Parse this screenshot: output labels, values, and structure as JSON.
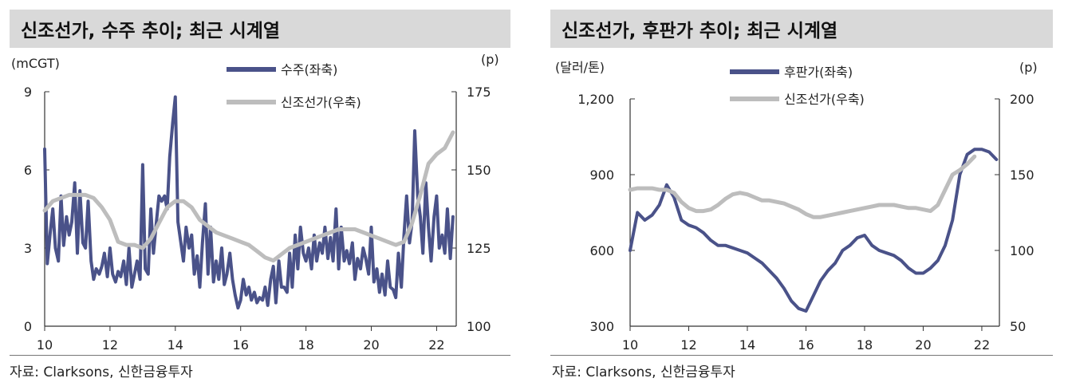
{
  "chart_data": [
    {
      "type": "line",
      "title": "신조선가, 수주 추이; 최근 시계열",
      "left_unit": "(mCGT)",
      "right_unit": "(p)",
      "source": "자료: Clarksons, 신한금융투자",
      "xlim": [
        10,
        22.6
      ],
      "x_ticks": [
        10,
        12,
        14,
        16,
        18,
        20,
        22
      ],
      "y_left": {
        "range": [
          0,
          9
        ],
        "ticks": [
          0,
          3,
          6,
          9
        ]
      },
      "y_right": {
        "range": [
          100,
          175
        ],
        "ticks": [
          100,
          125,
          150,
          175
        ]
      },
      "legend": [
        {
          "label": "수주(좌축)",
          "color": "#4a5289"
        },
        {
          "label": "신조선가(우축)",
          "color": "#bdbdbd"
        }
      ],
      "series": [
        {
          "name": "수주(좌축)",
          "axis": "left",
          "color": "#4a5289",
          "x": [
            10.0,
            10.08,
            10.17,
            10.25,
            10.33,
            10.42,
            10.5,
            10.58,
            10.67,
            10.75,
            10.83,
            10.92,
            11.0,
            11.08,
            11.17,
            11.25,
            11.33,
            11.42,
            11.5,
            11.58,
            11.67,
            11.75,
            11.83,
            11.92,
            12.0,
            12.08,
            12.17,
            12.25,
            12.33,
            12.42,
            12.5,
            12.58,
            12.67,
            12.75,
            12.83,
            12.92,
            13.0,
            13.08,
            13.17,
            13.25,
            13.33,
            13.42,
            13.5,
            13.58,
            13.67,
            13.75,
            13.83,
            13.92,
            14.0,
            14.08,
            14.17,
            14.25,
            14.33,
            14.42,
            14.5,
            14.58,
            14.67,
            14.75,
            14.83,
            14.92,
            15.0,
            15.08,
            15.17,
            15.25,
            15.33,
            15.42,
            15.5,
            15.58,
            15.67,
            15.75,
            15.83,
            15.92,
            16.0,
            16.08,
            16.17,
            16.25,
            16.33,
            16.42,
            16.5,
            16.58,
            16.67,
            16.75,
            16.83,
            16.92,
            17.0,
            17.08,
            17.17,
            17.25,
            17.33,
            17.42,
            17.5,
            17.58,
            17.67,
            17.75,
            17.83,
            17.92,
            18.0,
            18.08,
            18.17,
            18.25,
            18.33,
            18.42,
            18.5,
            18.58,
            18.67,
            18.75,
            18.83,
            18.92,
            19.0,
            19.08,
            19.17,
            19.25,
            19.33,
            19.42,
            19.5,
            19.58,
            19.67,
            19.75,
            19.83,
            19.92,
            20.0,
            20.08,
            20.17,
            20.25,
            20.33,
            20.42,
            20.5,
            20.58,
            20.67,
            20.75,
            20.83,
            20.92,
            21.0,
            21.08,
            21.17,
            21.25,
            21.33,
            21.42,
            21.5,
            21.58,
            21.67,
            21.75,
            21.83,
            21.92,
            22.0,
            22.08,
            22.17,
            22.25,
            22.33,
            22.42,
            22.5
          ],
          "values": [
            6.8,
            2.4,
            3.6,
            4.5,
            3.0,
            2.5,
            5.0,
            3.1,
            4.2,
            3.5,
            4.0,
            5.5,
            2.8,
            5.2,
            3.2,
            3.0,
            4.8,
            2.5,
            1.8,
            2.2,
            2.0,
            2.3,
            2.8,
            1.9,
            3.0,
            2.0,
            1.7,
            2.1,
            1.9,
            2.5,
            1.6,
            3.0,
            1.5,
            2.0,
            2.5,
            1.8,
            6.2,
            2.2,
            2.0,
            4.5,
            2.8,
            4.0,
            5.0,
            4.8,
            5.0,
            4.5,
            6.5,
            7.8,
            8.8,
            4.0,
            3.2,
            2.5,
            3.8,
            3.0,
            3.5,
            2.0,
            2.7,
            1.5,
            3.2,
            4.7,
            2.0,
            3.8,
            1.7,
            2.5,
            1.8,
            3.0,
            1.6,
            2.0,
            2.8,
            1.8,
            1.2,
            0.7,
            1.0,
            1.8,
            1.2,
            1.5,
            1.0,
            1.3,
            0.9,
            1.1,
            1.0,
            1.5,
            0.8,
            1.8,
            2.3,
            0.9,
            2.5,
            1.5,
            1.5,
            1.3,
            2.8,
            1.5,
            3.5,
            2.2,
            3.8,
            2.8,
            2.5,
            3.0,
            2.2,
            3.5,
            2.5,
            3.2,
            2.8,
            3.8,
            2.6,
            3.4,
            2.5,
            4.5,
            2.2,
            3.8,
            2.5,
            2.9,
            2.4,
            3.2,
            1.8,
            2.6,
            2.2,
            3.0,
            2.6,
            2.0,
            3.8,
            1.7,
            2.2,
            1.3,
            2.0,
            1.2,
            2.5,
            1.5,
            1.4,
            1.1,
            2.8,
            1.5,
            3.5,
            5.0,
            3.2,
            4.0,
            7.5,
            5.0,
            4.2,
            2.8,
            5.5,
            3.8,
            2.5,
            4.2,
            5.0,
            3.0,
            3.5,
            2.8,
            4.5,
            2.6,
            4.2
          ]
        },
        {
          "name": "신조선가(우축)",
          "axis": "right",
          "color": "#bdbdbd",
          "x": [
            10.0,
            10.25,
            10.5,
            10.75,
            11.0,
            11.25,
            11.5,
            11.75,
            12.0,
            12.25,
            12.5,
            12.75,
            13.0,
            13.25,
            13.5,
            13.75,
            14.0,
            14.25,
            14.5,
            14.75,
            15.0,
            15.25,
            15.5,
            15.75,
            16.0,
            16.25,
            16.5,
            16.75,
            17.0,
            17.25,
            17.5,
            17.75,
            18.0,
            18.25,
            18.5,
            18.75,
            19.0,
            19.25,
            19.5,
            19.75,
            20.0,
            20.25,
            20.5,
            20.75,
            21.0,
            21.25,
            21.5,
            21.75,
            22.0,
            22.25,
            22.5
          ],
          "values": [
            137,
            140,
            141,
            142,
            142,
            142,
            141,
            138,
            134,
            127,
            126,
            126,
            125,
            128,
            133,
            138,
            140,
            140,
            138,
            134,
            132,
            130,
            129,
            128,
            127,
            126,
            124,
            122,
            121,
            123,
            125,
            126,
            127,
            128,
            129,
            130,
            131,
            131,
            131,
            130,
            129,
            128,
            127,
            126,
            127,
            133,
            142,
            152,
            155,
            157,
            162
          ]
        }
      ]
    },
    {
      "type": "line",
      "title": "신조선가, 후판가 추이; 최근 시계열",
      "left_unit": "(달러/톤)",
      "right_unit": "(p)",
      "source": "자료: Clarksons, 신한금융투자",
      "xlim": [
        10,
        22.6
      ],
      "x_ticks": [
        10,
        12,
        14,
        16,
        18,
        20,
        22
      ],
      "y_left": {
        "range": [
          300,
          1200
        ],
        "ticks": [
          300,
          600,
          900
        ],
        "tick_labels": [
          "300",
          "600",
          "900",
          "1,200"
        ],
        "top_tick": 1200
      },
      "y_right": {
        "range": [
          50,
          200
        ],
        "ticks": [
          50,
          100,
          150,
          200
        ]
      },
      "legend": [
        {
          "label": "후판가(좌축)",
          "color": "#4a5289"
        },
        {
          "label": "신조선가(우축)",
          "color": "#bdbdbd"
        }
      ],
      "series": [
        {
          "name": "후판가(좌축)",
          "axis": "left",
          "color": "#4a5289",
          "x": [
            10.0,
            10.25,
            10.5,
            10.75,
            11.0,
            11.25,
            11.5,
            11.75,
            12.0,
            12.25,
            12.5,
            12.75,
            13.0,
            13.25,
            13.5,
            13.75,
            14.0,
            14.25,
            14.5,
            14.75,
            15.0,
            15.25,
            15.5,
            15.75,
            16.0,
            16.25,
            16.5,
            16.75,
            17.0,
            17.25,
            17.5,
            17.75,
            18.0,
            18.25,
            18.5,
            18.75,
            19.0,
            19.25,
            19.5,
            19.75,
            20.0,
            20.25,
            20.5,
            20.75,
            21.0,
            21.25,
            21.5,
            21.75,
            22.0,
            22.25,
            22.5
          ],
          "values": [
            600,
            750,
            720,
            740,
            780,
            860,
            810,
            720,
            700,
            690,
            670,
            640,
            620,
            620,
            610,
            600,
            590,
            570,
            550,
            520,
            490,
            450,
            400,
            370,
            360,
            420,
            480,
            520,
            550,
            600,
            620,
            650,
            660,
            620,
            600,
            590,
            580,
            560,
            530,
            510,
            510,
            530,
            560,
            620,
            720,
            900,
            980,
            1000,
            1000,
            990,
            960
          ]
        },
        {
          "name": "신조선가(우축)",
          "axis": "right",
          "color": "#bdbdbd",
          "x": [
            10.0,
            10.25,
            10.5,
            10.75,
            11.0,
            11.25,
            11.5,
            11.75,
            12.0,
            12.25,
            12.5,
            12.75,
            13.0,
            13.25,
            13.5,
            13.75,
            14.0,
            14.25,
            14.5,
            14.75,
            15.0,
            15.25,
            15.5,
            15.75,
            16.0,
            16.25,
            16.5,
            16.75,
            17.0,
            17.25,
            17.5,
            17.75,
            18.0,
            18.25,
            18.5,
            18.75,
            19.0,
            19.25,
            19.5,
            19.75,
            20.0,
            20.25,
            20.5,
            20.75,
            21.0,
            21.25,
            21.5,
            21.75
          ],
          "values": [
            140,
            141,
            141,
            141,
            140,
            140,
            138,
            132,
            128,
            126,
            126,
            127,
            130,
            134,
            137,
            138,
            137,
            135,
            133,
            133,
            132,
            131,
            129,
            127,
            124,
            122,
            122,
            123,
            124,
            125,
            126,
            127,
            128,
            129,
            130,
            130,
            130,
            129,
            128,
            128,
            127,
            126,
            130,
            140,
            150,
            153,
            157,
            162
          ]
        }
      ]
    }
  ]
}
